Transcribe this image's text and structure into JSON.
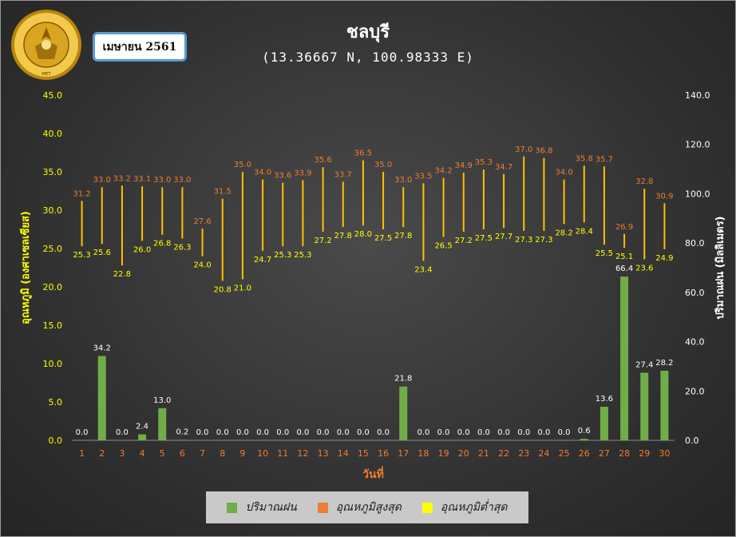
{
  "header": {
    "month_label": "เมษายน 2561",
    "title": "ชลบุรี",
    "subtitle": "(13.36667 N, 100.98333 E)",
    "logo_text": "MET"
  },
  "legend": {
    "rain": "ปริมาณฝน",
    "tmax": "อุณหภูมิสูงสุด",
    "tmin": "อุณหภูมิต่ำสุด"
  },
  "colors": {
    "rain": "#70ad47",
    "tmax_legend": "#ed7d31",
    "tmin_legend": "#ffff00",
    "range_line": "#ffc000",
    "tmax_label": "#ed7d31",
    "tmin_label": "#ffff00",
    "rain_label": "#ffffff",
    "axis_left": "#ffff00",
    "axis_right": "#ffffff",
    "axis_x": "#ed7d31"
  },
  "chart_data": {
    "type": "bar",
    "xlabel": "วันที่",
    "ylabel": "อุณหภูมิ (องศาเซลเซียส)",
    "y2label": "ปริมาณฝน (มิลลิเมตร)",
    "ylim": [
      0,
      45
    ],
    "y2lim": [
      0,
      140
    ],
    "yticks": [
      "0.0",
      "5.0",
      "10.0",
      "15.0",
      "20.0",
      "25.0",
      "30.0",
      "35.0",
      "40.0",
      "45.0"
    ],
    "y2ticks": [
      "0.0",
      "20.0",
      "40.0",
      "60.0",
      "80.0",
      "100.0",
      "120.0",
      "140.0"
    ],
    "categories": [
      "1",
      "2",
      "3",
      "4",
      "5",
      "6",
      "7",
      "8",
      "9",
      "10",
      "11",
      "12",
      "13",
      "14",
      "15",
      "16",
      "17",
      "18",
      "19",
      "20",
      "21",
      "22",
      "23",
      "24",
      "25",
      "26",
      "27",
      "28",
      "29",
      "30"
    ],
    "series": [
      {
        "name": "ปริมาณฝน",
        "axis": "right",
        "type": "bar",
        "values": [
          0.0,
          34.2,
          0.0,
          2.4,
          13.0,
          0.2,
          0.0,
          0.0,
          0.0,
          0.0,
          0.0,
          0.0,
          0.0,
          0.0,
          0.0,
          0.0,
          21.8,
          0.0,
          0.0,
          0.0,
          0.0,
          0.0,
          0.0,
          0.0,
          0.0,
          0.6,
          13.6,
          66.4,
          27.4,
          28.2
        ]
      },
      {
        "name": "อุณหภูมิสูงสุด",
        "axis": "left",
        "type": "range-high",
        "values": [
          31.2,
          33.0,
          33.2,
          33.1,
          33.0,
          33.0,
          27.6,
          31.5,
          35.0,
          34.0,
          33.6,
          33.9,
          35.6,
          33.7,
          36.5,
          35.0,
          33.0,
          33.5,
          34.2,
          34.9,
          35.3,
          34.7,
          37.0,
          36.8,
          34.0,
          35.8,
          35.7,
          26.9,
          32.8,
          30.9
        ]
      },
      {
        "name": "อุณหภูมิต่ำสุด",
        "axis": "left",
        "type": "range-low",
        "values": [
          25.3,
          25.6,
          22.8,
          26.0,
          26.8,
          26.3,
          24.0,
          20.8,
          21.0,
          24.7,
          25.3,
          25.3,
          27.2,
          27.8,
          28.0,
          27.5,
          27.8,
          23.4,
          26.5,
          27.2,
          27.5,
          27.7,
          27.3,
          27.3,
          28.2,
          28.4,
          25.5,
          25.1,
          23.6,
          24.9
        ]
      }
    ]
  }
}
